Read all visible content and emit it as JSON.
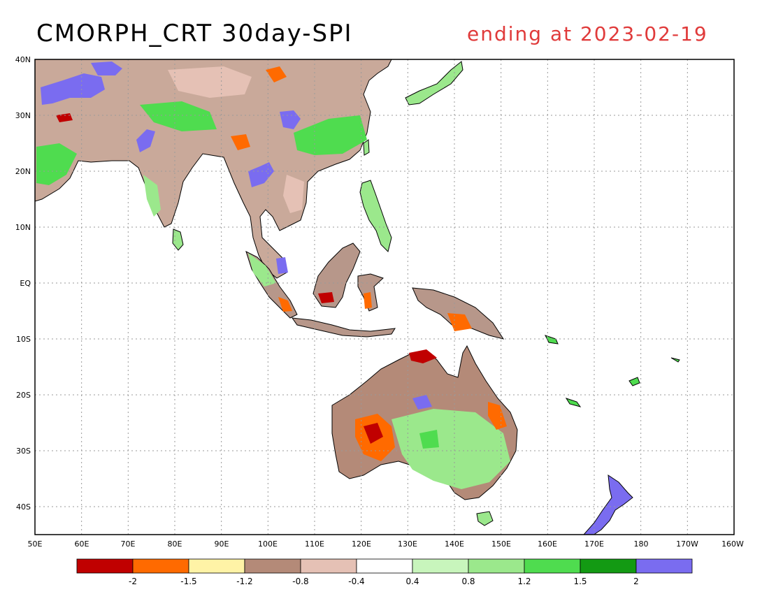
{
  "title": {
    "main": "CMORPH_CRT 30day-SPI",
    "subtitle": "ending at 2023-02-19"
  },
  "colors": {
    "title_right": "#e03a3a",
    "land_bg": "#b7978a",
    "ocean": "#ffffff"
  },
  "map": {
    "lon_range": [
      50,
      200
    ],
    "lat_range": [
      -45,
      40
    ],
    "lat_ticks": [
      "40N",
      "30N",
      "20N",
      "10N",
      "EQ",
      "10S",
      "20S",
      "30S",
      "40S"
    ],
    "lon_ticks": [
      "50E",
      "60E",
      "70E",
      "80E",
      "90E",
      "100E",
      "110E",
      "120E",
      "130E",
      "140E",
      "150E",
      "160E",
      "170E",
      "180",
      "170W",
      "160W"
    ],
    "grid": true
  },
  "colorbar": {
    "bins": [
      "#c00000",
      "#ff6a00",
      "#fff3a6",
      "#b48a78",
      "#e5c1b5",
      "#ffffff",
      "#c8f5bc",
      "#9be88c",
      "#4fdc4f",
      "#139a13",
      "#7a6cf0"
    ],
    "labels": [
      "-2",
      "-1.5",
      "-1.2",
      "-0.8",
      "-0.4",
      "0.4",
      "0.8",
      "1.2",
      "1.5",
      "2"
    ]
  }
}
